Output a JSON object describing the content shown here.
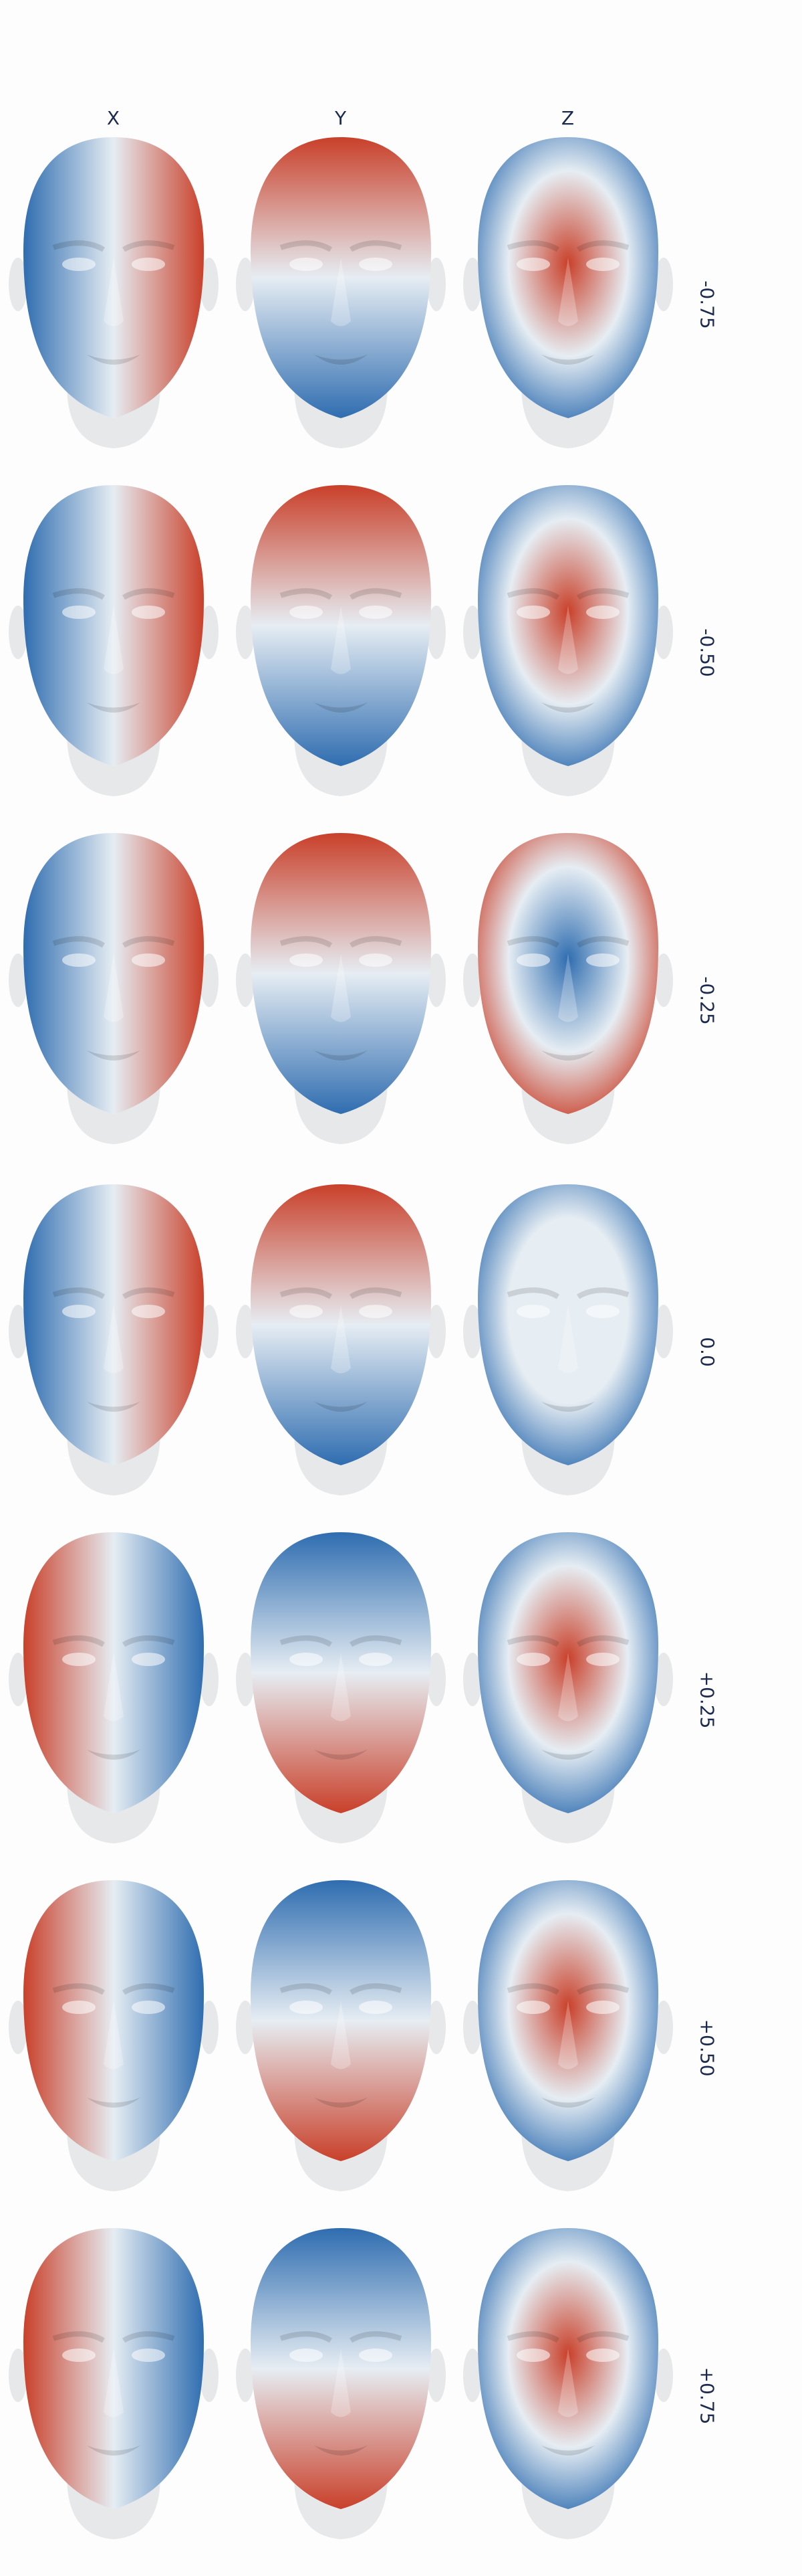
{
  "columns": [
    {
      "label": "X"
    },
    {
      "label": "Y"
    },
    {
      "label": "Z"
    }
  ],
  "rows": [
    {
      "label": "-0.75"
    },
    {
      "label": "-0.50"
    },
    {
      "label": "-0.25"
    },
    {
      "label": "0.0"
    },
    {
      "label": "+0.25"
    },
    {
      "label": "+0.50"
    },
    {
      "label": "+0.75"
    }
  ],
  "colors": {
    "negative": "#2f6db0",
    "neutral": "#e6edf3",
    "positive": "#c9402a",
    "neck_light": "#e6e8ea"
  }
}
